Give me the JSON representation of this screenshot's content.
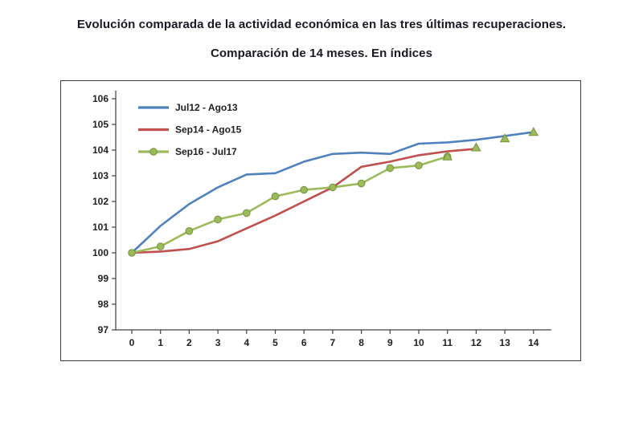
{
  "title": {
    "line1": "Evolución comparada de la actividad económica en las tres últimas recuperaciones.",
    "line2": "Comparación de 14 meses. En índices"
  },
  "chart_data": {
    "type": "line",
    "xlabel": "",
    "ylabel": "",
    "xlim": [
      0,
      14
    ],
    "ylim": [
      97,
      106
    ],
    "grid": false,
    "legend_position": "top-left",
    "x_ticks": [
      0,
      1,
      2,
      3,
      4,
      5,
      6,
      7,
      8,
      9,
      10,
      11,
      12,
      13,
      14
    ],
    "y_ticks": [
      97,
      98,
      99,
      100,
      101,
      102,
      103,
      104,
      105,
      106
    ],
    "series": [
      {
        "name": "Jul12 - Ago13",
        "color": "#4F81BD",
        "marker": "none",
        "legend": true,
        "x": [
          0,
          1,
          2,
          3,
          4,
          5,
          6,
          7,
          8,
          9,
          10,
          11,
          12,
          13,
          14
        ],
        "values": [
          100.0,
          101.05,
          101.9,
          102.55,
          103.05,
          103.1,
          103.55,
          103.85,
          103.9,
          103.85,
          104.25,
          104.3,
          104.4,
          104.55,
          104.7
        ]
      },
      {
        "name": "Sep14 - Ago15",
        "color": "#C0504D",
        "marker": "none",
        "legend": true,
        "x": [
          0,
          1,
          2,
          3,
          4,
          5,
          6,
          7,
          8,
          9,
          10,
          11,
          12
        ],
        "values": [
          100.0,
          100.05,
          100.15,
          100.45,
          100.95,
          101.45,
          102.0,
          102.55,
          103.35,
          103.55,
          103.8,
          103.95,
          104.05
        ]
      },
      {
        "name": "Sep16 - Jul17",
        "color": "#9BBB59",
        "marker": "circle",
        "legend": true,
        "x": [
          0,
          1,
          2,
          3,
          4,
          5,
          6,
          7,
          8,
          9,
          10,
          11
        ],
        "values": [
          100.0,
          100.25,
          100.85,
          101.3,
          101.55,
          102.2,
          102.45,
          102.55,
          102.7,
          103.3,
          103.4,
          103.75
        ]
      },
      {
        "name": "Sep16 - Jul17",
        "color": "#9BBB59",
        "marker": "triangle",
        "legend": false,
        "line": false,
        "x": [
          11,
          12,
          13,
          14
        ],
        "values": [
          103.75,
          104.1,
          104.45,
          104.7
        ]
      }
    ]
  }
}
